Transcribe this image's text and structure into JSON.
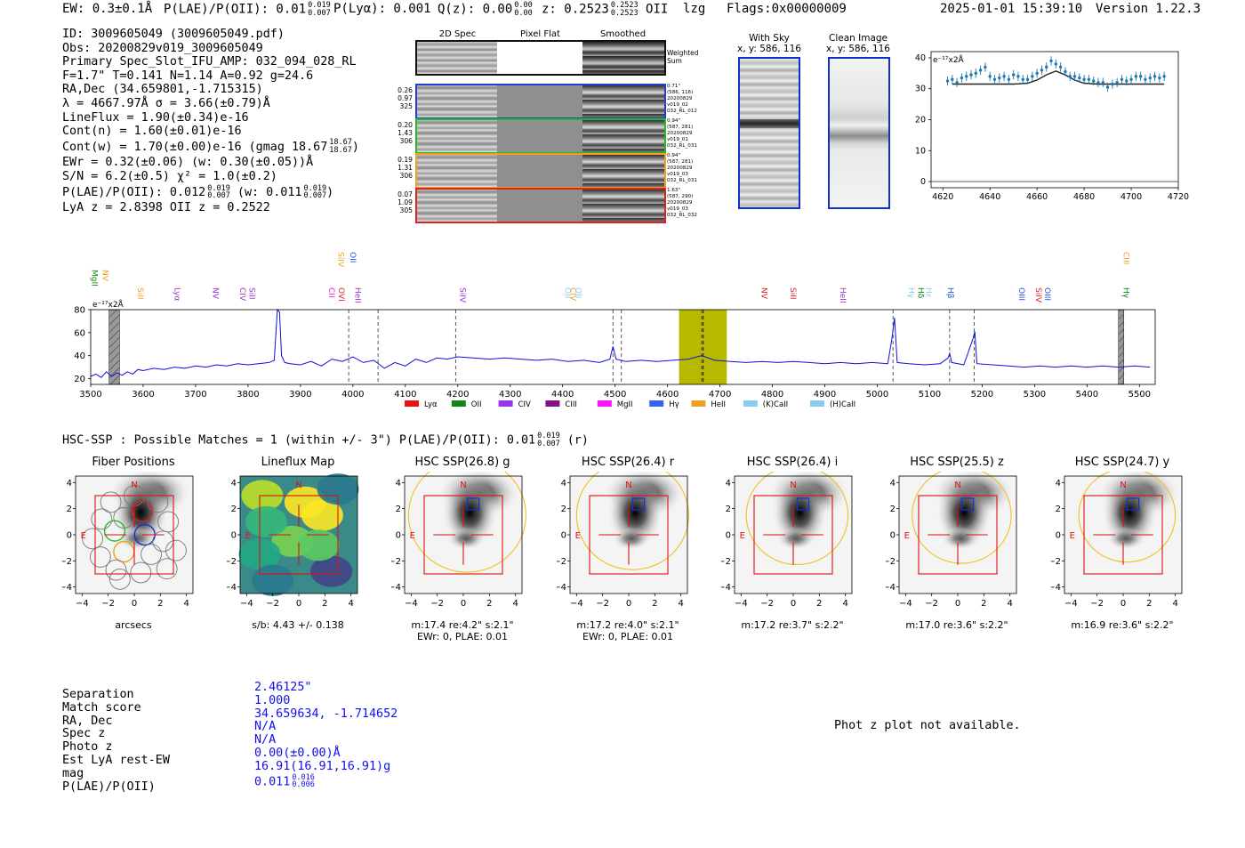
{
  "header": {
    "ew": "EW: 0.3±0.1Å",
    "plae_prefix": "P(LAE)/P(OII): 0.01",
    "plae_hi": "0.019",
    "plae_lo": "0.007",
    "plya": "P(Lyα): 0.001",
    "qz_prefix": "Q(z): 0.00",
    "qz_hi": "0.00",
    "qz_lo": "0.00",
    "z_prefix": "z: 0.2523",
    "z_hi": "0.2523",
    "z_lo": "0.2523",
    "z_suffix": "OII",
    "lzg": "lzg",
    "flags": "Flags:0x00000009",
    "datetime": "2025-01-01 15:39:10",
    "version": "Version 1.22.3"
  },
  "info": {
    "id": "ID: 3009605049 (3009605049.pdf)",
    "obs": "Obs: 20200829v019_3009605049",
    "slot": "Primary Spec_Slot_IFU_AMP: 032_094_028_RL",
    "params": "F=1.7\"  T=0.141  N=1.14  A=0.92  g=24.6",
    "radec": "RA,Dec (34.659801,-1.715315)",
    "lambda": "λ = 4667.97Å  σ = 3.66(±0.79)Å",
    "lineflux": "LineFlux = 1.90(±0.34)e-16",
    "contn": "Cont(n) = 1.60(±0.01)e-16",
    "contw_prefix": "Cont(w) = 1.70(±0.00)e-16 (gmag 18.67",
    "contw_hi": "18.67",
    "contw_lo": "18.67",
    "contw_suffix": ")",
    "ewr": "EWr = 0.32(±0.06) (w: 0.30(±0.05))Å",
    "sn": "S/N = 6.2(±0.5)  χ² = 1.0(±0.2)",
    "plae_prefix": "P(LAE)/P(OII): 0.012",
    "plae_hi": "0.019",
    "plae_lo": "0.007",
    "plae_mid": "(w: 0.011",
    "plae_w_hi": "0.019",
    "plae_w_lo": "0.007",
    "plae_suffix": ")",
    "lyaz": "LyA z = 2.8398   OII z = 0.2522"
  },
  "spec2d": {
    "col_titles": [
      "2D Spec",
      "Pixel Flat",
      "Smoothed"
    ],
    "weighted": "Weighted\nSum",
    "rows": [
      {
        "color": "#1f3fd6",
        "left": [
          "0.26",
          "0.97",
          "325"
        ],
        "right": [
          "0.71\"",
          "(586, 116)",
          "20200829",
          "v019_02",
          "032_RL_012"
        ]
      },
      {
        "color": "#22bb22",
        "left": [
          "0.20",
          "1.43",
          "306"
        ],
        "right": [
          "0.94\"",
          "(587, 281)",
          "20200829",
          "v019_01",
          "032_RL_031"
        ]
      },
      {
        "color": "#f0a020",
        "left": [
          "0.19",
          "1.31",
          "306"
        ],
        "right": [
          "0.94\"",
          "(587, 281)",
          "20200829",
          "v019_03",
          "032_RL_031"
        ]
      },
      {
        "color": "#dd2222",
        "left": [
          "0.07",
          "1.09",
          "305"
        ],
        "right": [
          "1.63\"",
          "(587, 290)",
          "20200829",
          "v019_03",
          "032_RL_032"
        ]
      }
    ]
  },
  "sky": {
    "with_sky_title": "With Sky",
    "with_sky_sub": "x, y: 586, 116",
    "clean_title": "Clean Image",
    "clean_sub": "x, y: 586, 116"
  },
  "zoom_chart": {
    "type": "scatter",
    "unit_label": "e⁻¹⁷x2Å",
    "xlim": [
      4615,
      4720
    ],
    "ylim": [
      -2,
      42
    ],
    "xticks": [
      4620,
      4640,
      4660,
      4680,
      4700,
      4720
    ],
    "yticks": [
      0,
      10,
      20,
      30,
      40
    ],
    "points": {
      "x": [
        4622,
        4624,
        4626,
        4628,
        4630,
        4632,
        4634,
        4636,
        4638,
        4640,
        4642,
        4644,
        4646,
        4648,
        4650,
        4652,
        4654,
        4656,
        4658,
        4660,
        4662,
        4664,
        4666,
        4668,
        4670,
        4672,
        4674,
        4676,
        4678,
        4680,
        4682,
        4684,
        4686,
        4688,
        4690,
        4692,
        4694,
        4696,
        4698,
        4700,
        4702,
        4704,
        4706,
        4708,
        4710,
        4712,
        4714
      ],
      "y": [
        32.5,
        33,
        32,
        33.5,
        34,
        34.5,
        35,
        36,
        37,
        34,
        33,
        33.5,
        34,
        33,
        34.5,
        34,
        33,
        33,
        34,
        35,
        36,
        37,
        39,
        38,
        37,
        35.5,
        34,
        34,
        33.5,
        33,
        33,
        32.5,
        32,
        32,
        30.5,
        31.5,
        32,
        33,
        32.5,
        33,
        34,
        34,
        33,
        33.5,
        34,
        33.5,
        34
      ]
    },
    "model": {
      "x": [
        4624,
        4650,
        4656,
        4660,
        4664,
        4668,
        4672,
        4676,
        4680,
        4686,
        4714
      ],
      "y": [
        31.5,
        31.5,
        31.8,
        32.8,
        34.5,
        35.7,
        34.5,
        32.8,
        31.8,
        31.5,
        31.5
      ]
    },
    "zero_line": 0
  },
  "full_chart": {
    "type": "line",
    "unit_label": "e⁻¹⁷x2Å",
    "xlim": [
      3500,
      5530
    ],
    "ylim": [
      15,
      80
    ],
    "xticks": [
      3500,
      3600,
      3700,
      3800,
      3900,
      4000,
      4100,
      4200,
      4300,
      4400,
      4500,
      4600,
      4700,
      4800,
      4900,
      5000,
      5100,
      5200,
      5300,
      5400,
      5500
    ],
    "yticks": [
      20,
      40,
      60,
      80
    ],
    "highlight_band": [
      4622,
      4713
    ],
    "highlight_color": "#b8b800",
    "center_line": 4668,
    "bad_regions": [
      [
        3535,
        3555
      ],
      [
        5460,
        5470
      ]
    ],
    "dashed_lines": [
      3992,
      4048,
      4196,
      4496,
      4512,
      4665,
      5030,
      5138,
      5185,
      5470
    ],
    "spectrum": {
      "x": [
        3500,
        3510,
        3520,
        3530,
        3540,
        3550,
        3560,
        3570,
        3580,
        3590,
        3600,
        3620,
        3640,
        3660,
        3680,
        3700,
        3720,
        3740,
        3760,
        3780,
        3800,
        3820,
        3840,
        3850,
        3856,
        3860,
        3864,
        3870,
        3880,
        3900,
        3920,
        3940,
        3960,
        3980,
        4000,
        4020,
        4040,
        4060,
        4080,
        4100,
        4120,
        4140,
        4160,
        4180,
        4200,
        4230,
        4260,
        4290,
        4320,
        4350,
        4380,
        4410,
        4440,
        4470,
        4490,
        4496,
        4502,
        4520,
        4550,
        4580,
        4610,
        4640,
        4665,
        4690,
        4720,
        4750,
        4780,
        4810,
        4840,
        4870,
        4900,
        4930,
        4960,
        4990,
        5020,
        5028,
        5033,
        5038,
        5060,
        5090,
        5120,
        5135,
        5138,
        5142,
        5165,
        5182,
        5186,
        5190,
        5220,
        5250,
        5280,
        5310,
        5340,
        5370,
        5400,
        5430,
        5460,
        5490,
        5520
      ],
      "y": [
        22,
        24,
        21,
        26,
        22,
        25,
        23,
        26,
        24,
        28,
        27,
        29,
        28,
        30,
        29,
        31,
        30,
        32,
        31,
        33,
        32,
        33,
        34,
        36,
        80,
        78,
        40,
        34,
        33,
        32,
        35,
        31,
        37,
        35,
        39,
        34,
        36,
        29,
        34,
        31,
        37,
        34,
        38,
        37,
        39,
        38,
        37,
        38,
        37,
        36,
        37,
        35,
        36,
        34,
        37,
        48,
        37,
        35,
        36,
        35,
        36,
        37,
        40,
        36,
        35,
        34,
        35,
        34,
        35,
        34,
        33,
        34,
        33,
        34,
        33,
        55,
        73,
        34,
        33,
        32,
        33,
        38,
        42,
        34,
        32,
        54,
        61,
        33,
        32,
        31,
        30,
        31,
        30,
        31,
        30,
        31,
        30,
        31,
        30
      ]
    },
    "line_labels": [
      {
        "name": "MgII",
        "w": 3508,
        "color": "#118811",
        "row": 1
      },
      {
        "name": "NV",
        "w": 3528,
        "color": "#f0a020",
        "row": 1
      },
      {
        "name": "SiII",
        "w": 3595,
        "color": "#f0a020",
        "row": 2
      },
      {
        "name": "Lyα",
        "w": 3665,
        "color": "#9933cc",
        "row": 2
      },
      {
        "name": "NV",
        "w": 3738,
        "color": "#9933cc",
        "row": 2
      },
      {
        "name": "CIV",
        "w": 3790,
        "color": "#9933cc",
        "row": 2
      },
      {
        "name": "SiII",
        "w": 3808,
        "color": "#9933cc",
        "row": 2
      },
      {
        "name": "CII",
        "w": 3960,
        "color": "#dd22dd",
        "row": 2
      },
      {
        "name": "SiIV",
        "w": 3977,
        "color": "#f0a020",
        "row": 0
      },
      {
        "name": "OII",
        "w": 4000,
        "color": "#2255dd",
        "row": 0
      },
      {
        "name": "OVI",
        "w": 3978,
        "color": "#dd2222",
        "row": 2
      },
      {
        "name": "HeII",
        "w": 4010,
        "color": "#9933cc",
        "row": 2
      },
      {
        "name": "SiIV",
        "w": 4210,
        "color": "#9933cc",
        "row": 2
      },
      {
        "name": "OII",
        "w": 4410,
        "color": "#88ccee",
        "row": 2
      },
      {
        "name": "CIV",
        "w": 4420,
        "color": "#f0a020",
        "row": 2
      },
      {
        "name": "OII",
        "w": 4430,
        "color": "#88ccee",
        "row": 2
      },
      {
        "name": "NV",
        "w": 4785,
        "color": "#dd2222",
        "row": 2
      },
      {
        "name": "SiII",
        "w": 4840,
        "color": "#dd2222",
        "row": 2
      },
      {
        "name": "HeII",
        "w": 4935,
        "color": "#9933cc",
        "row": 2
      },
      {
        "name": "Hγ",
        "w": 5065,
        "color": "#88ccee",
        "row": 2
      },
      {
        "name": "Hδ",
        "w": 5083,
        "color": "#118811",
        "row": 2
      },
      {
        "name": "Hε",
        "w": 5098,
        "color": "#88ccee",
        "row": 2
      },
      {
        "name": "Hβ",
        "w": 5140,
        "color": "#2255dd",
        "row": 2
      },
      {
        "name": "OIII",
        "w": 5276,
        "color": "#2255dd",
        "row": 2
      },
      {
        "name": "SiIV",
        "w": 5308,
        "color": "#dd2222",
        "row": 2
      },
      {
        "name": "OIII",
        "w": 5325,
        "color": "#2255dd",
        "row": 2
      },
      {
        "name": "Hγ",
        "w": 5475,
        "color": "#118811",
        "row": 2
      },
      {
        "name": "CIII",
        "w": 5475,
        "color": "#f0a020",
        "row": 0
      }
    ],
    "legend": [
      {
        "label": "Lyα",
        "color": "#ee1111"
      },
      {
        "label": "OII",
        "color": "#118811"
      },
      {
        "label": "CIV",
        "color": "#9933ee"
      },
      {
        "label": "CIII",
        "color": "#881188"
      },
      {
        "label": "MgII",
        "color": "#ff11ff"
      },
      {
        "label": "Hγ",
        "color": "#3366ee"
      },
      {
        "label": "HeII",
        "color": "#f0a020"
      },
      {
        "label": "(K)CaII",
        "color": "#88ccee"
      },
      {
        "label": "(H)CaII",
        "color": "#88ccee"
      }
    ]
  },
  "hsc": {
    "title_prefix": "HSC-SSP : Possible Matches = 1 (within +/- 3\")  P(LAE)/P(OII): 0.01",
    "title_hi": "0.019",
    "title_lo": "0.007",
    "title_suffix": "(r)",
    "panels": [
      {
        "title": "Fiber Positions",
        "below1": "arcsecs",
        "below2": ""
      },
      {
        "title": "Lineflux Map",
        "below1": "s/b: 4.43 +/- 0.138",
        "below2": ""
      },
      {
        "title": "HSC SSP(26.8) g",
        "below1": "m:17.4  re:4.2\"  s:2.1\"",
        "below2": "EWr: 0, PLAE: 0.01"
      },
      {
        "title": "HSC SSP(26.4) r",
        "below1": "m:17.2  re:4.0\"  s:2.1\"",
        "below2": "EWr: 0, PLAE: 0.01"
      },
      {
        "title": "HSC SSP(26.4) i",
        "below1": "m:17.2  re:3.7\"  s:2.2\"",
        "below2": ""
      },
      {
        "title": "HSC SSP(25.5) z",
        "below1": "m:17.0  re:3.6\"  s:2.2\"",
        "below2": ""
      },
      {
        "title": "HSC SSP(24.7) y",
        "below1": "m:16.9  re:3.6\"  s:2.2\"",
        "below2": ""
      }
    ],
    "axis_ticks": [
      "4",
      "2",
      "0",
      "−2",
      "−4"
    ],
    "x_ticks": [
      "−4",
      "−2",
      "0",
      "2",
      "4"
    ],
    "compass_n": "N",
    "compass_e": "E"
  },
  "match": {
    "keys": [
      "Separation",
      "Match score",
      "RA, Dec",
      "Spec z",
      "Photo z",
      "Est LyA rest-EW",
      "mag",
      "P(LAE)/P(OII)"
    ],
    "vals": [
      "2.46125\"",
      "1.000",
      "34.659634, -1.714652",
      "N/A",
      "N/A",
      "0.00(±0.00)Å",
      "16.91(16.91,16.91)g",
      "0.011"
    ],
    "plae_hi": "0.016",
    "plae_lo": "0.006",
    "photz_note": "Phot z plot not available."
  }
}
